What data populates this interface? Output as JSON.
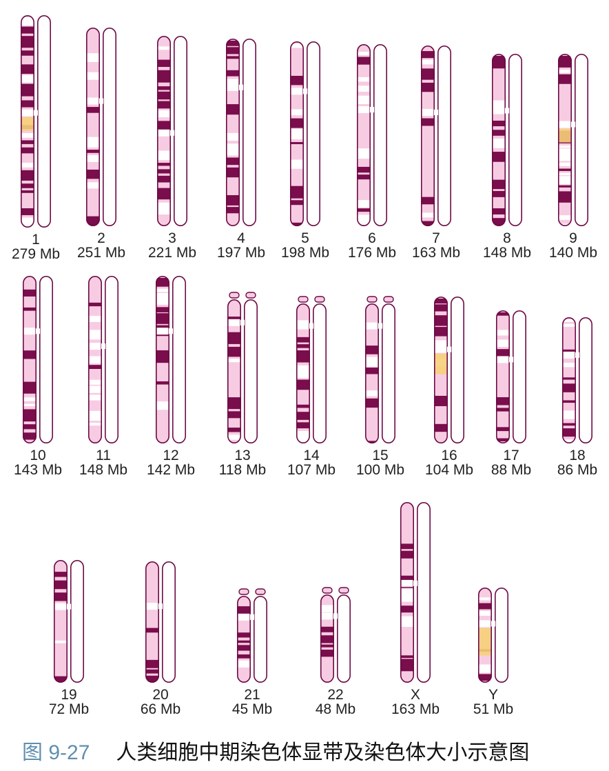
{
  "caption": {
    "figure_number": "图 9-27",
    "title": "人类细胞中期染色体显带及染色体大小示意图"
  },
  "colors": {
    "dark_band": "#7a0d4c",
    "light_band": "#f7cce2",
    "white_band": "#ffffff",
    "outline": "#6b0a44",
    "heterochromatin": "#f6d07a",
    "label_text": "#222222",
    "caption_number": "#5f8fb0"
  },
  "chromosomes": [
    {
      "id": "1",
      "number_label": "1",
      "size_label": "279 Mb",
      "size_mb": 279
    },
    {
      "id": "2",
      "number_label": "2",
      "size_label": "251 Mb",
      "size_mb": 251
    },
    {
      "id": "3",
      "number_label": "3",
      "size_label": "221 Mb",
      "size_mb": 221
    },
    {
      "id": "4",
      "number_label": "4",
      "size_label": "197 Mb",
      "size_mb": 197
    },
    {
      "id": "5",
      "number_label": "5",
      "size_label": "198 Mb",
      "size_mb": 198
    },
    {
      "id": "6",
      "number_label": "6",
      "size_label": "176 Mb",
      "size_mb": 176
    },
    {
      "id": "7",
      "number_label": "7",
      "size_label": "163 Mb",
      "size_mb": 163
    },
    {
      "id": "8",
      "number_label": "8",
      "size_label": "148 Mb",
      "size_mb": 148
    },
    {
      "id": "9",
      "number_label": "9",
      "size_label": "140 Mb",
      "size_mb": 140
    },
    {
      "id": "10",
      "number_label": "10",
      "size_label": "143 Mb",
      "size_mb": 143
    },
    {
      "id": "11",
      "number_label": "11",
      "size_label": "148 Mb",
      "size_mb": 148
    },
    {
      "id": "12",
      "number_label": "12",
      "size_label": "142 Mb",
      "size_mb": 142
    },
    {
      "id": "13",
      "number_label": "13",
      "size_label": "118 Mb",
      "size_mb": 118
    },
    {
      "id": "14",
      "number_label": "14",
      "size_label": "107 Mb",
      "size_mb": 107
    },
    {
      "id": "15",
      "number_label": "15",
      "size_label": "100 Mb",
      "size_mb": 100
    },
    {
      "id": "16",
      "number_label": "16",
      "size_label": "104 Mb",
      "size_mb": 104
    },
    {
      "id": "17",
      "number_label": "17",
      "size_label": "88 Mb",
      "size_mb": 88
    },
    {
      "id": "18",
      "number_label": "18",
      "size_label": "86 Mb",
      "size_mb": 86
    },
    {
      "id": "19",
      "number_label": "19",
      "size_label": "72 Mb",
      "size_mb": 72
    },
    {
      "id": "20",
      "number_label": "20",
      "size_label": "66 Mb",
      "size_mb": 66
    },
    {
      "id": "21",
      "number_label": "21",
      "size_label": "45 Mb",
      "size_mb": 45
    },
    {
      "id": "22",
      "number_label": "22",
      "size_label": "48 Mb",
      "size_mb": 48
    },
    {
      "id": "X",
      "number_label": "X",
      "size_label": "163 Mb",
      "size_mb": 163
    },
    {
      "id": "Y",
      "number_label": "Y",
      "size_label": "51 Mb",
      "size_mb": 51
    }
  ]
}
